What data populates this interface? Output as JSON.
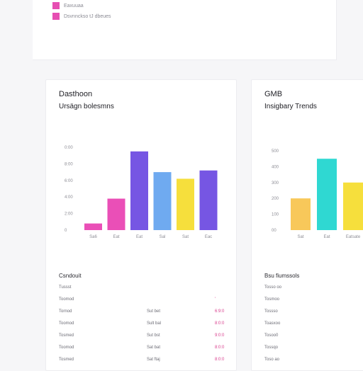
{
  "legend": [
    {
      "label": "Eaxuuaa",
      "color": "#e64fb2"
    },
    {
      "label": "Dsvnnckso  tJ  dbeues",
      "color": "#e64fb2"
    }
  ],
  "left_panel": {
    "title": "Dasthoon",
    "subtitle": "Ursägn bolesmns",
    "table_title": "Csndouit",
    "rows": [
      {
        "name": "Tussst",
        "col2": "",
        "col3": ""
      },
      {
        "name": "Toomod",
        "col2": "",
        "col3": "'"
      },
      {
        "name": "Tornod",
        "col2": "Sut bet",
        "col3": "6:9:0"
      },
      {
        "name": "Toomod",
        "col2": "Sult bal",
        "col3": "8:0:0"
      },
      {
        "name": "Tosmed",
        "col2": "Sut bst",
        "col3": "9:0:0"
      },
      {
        "name": "Toomod",
        "col2": "Sat bat",
        "col3": "8:0:0"
      },
      {
        "name": "Tosmed",
        "col2": "Sat ftaj",
        "col3": "8:0:0"
      }
    ]
  },
  "right_panel": {
    "title": "GMB",
    "subtitle": "Insigbary Trends",
    "table_title": "Bsu fiumssols",
    "rows": [
      {
        "name": "Tosso oo"
      },
      {
        "name": "Tosmoo"
      },
      {
        "name": "Tossso"
      },
      {
        "name": "Toasxoo"
      },
      {
        "name": "Tosoo0"
      },
      {
        "name": "Tossqo"
      },
      {
        "name": "Toso ao"
      }
    ]
  },
  "chart_data": [
    {
      "type": "bar",
      "title": "Dasthoon",
      "subtitle": "Ursägn bolesmns",
      "y_ticks": [
        "0",
        "2:00",
        "4:00",
        "6:00",
        "8:00",
        "0:00"
      ],
      "ylim": [
        0,
        100
      ],
      "categories": [
        "Sa6",
        "Eat",
        "Eat",
        "Sal",
        "Sat",
        "Eac"
      ],
      "values": [
        8,
        38,
        95,
        70,
        62,
        72
      ],
      "colors": [
        "#ea4fb7",
        "#ea4fb7",
        "#7656e3",
        "#6faaf0",
        "#f6df3c",
        "#7656e3"
      ]
    },
    {
      "type": "bar",
      "title": "GMB",
      "subtitle": "Insigbary Trends",
      "y_ticks": [
        "00",
        "100",
        "200",
        "300",
        "400",
        "500"
      ],
      "ylim": [
        0,
        500
      ],
      "categories": [
        "Sat",
        "Eat",
        "Eatsate"
      ],
      "values": [
        200,
        450,
        300
      ],
      "colors": [
        "#f8c85a",
        "#2fd8d2",
        "#f6df3c"
      ]
    }
  ]
}
